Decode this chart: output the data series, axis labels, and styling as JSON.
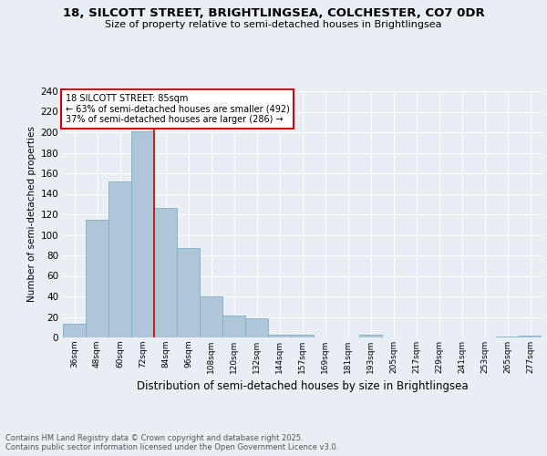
{
  "title_line1": "18, SILCOTT STREET, BRIGHTLINGSEA, COLCHESTER, CO7 0DR",
  "title_line2": "Size of property relative to semi-detached houses in Brightlingsea",
  "xlabel": "Distribution of semi-detached houses by size in Brightlingsea",
  "ylabel": "Number of semi-detached properties",
  "categories": [
    "36sqm",
    "48sqm",
    "60sqm",
    "72sqm",
    "84sqm",
    "96sqm",
    "108sqm",
    "120sqm",
    "132sqm",
    "144sqm",
    "157sqm",
    "169sqm",
    "181sqm",
    "193sqm",
    "205sqm",
    "217sqm",
    "229sqm",
    "241sqm",
    "253sqm",
    "265sqm",
    "277sqm"
  ],
  "values": [
    13,
    115,
    152,
    201,
    126,
    87,
    40,
    21,
    19,
    3,
    3,
    0,
    0,
    3,
    0,
    0,
    0,
    0,
    0,
    1,
    2
  ],
  "bar_color": "#aec6d8",
  "bar_edge_color": "#7aafc8",
  "annotation_text": "18 SILCOTT STREET: 85sqm\n← 63% of semi-detached houses are smaller (492)\n37% of semi-detached houses are larger (286) →",
  "annotation_box_color": "#ffffff",
  "annotation_box_edge_color": "#cc0000",
  "vline_color": "#cc0000",
  "vline_x_index": 4,
  "ylim": [
    0,
    240
  ],
  "yticks": [
    0,
    20,
    40,
    60,
    80,
    100,
    120,
    140,
    160,
    180,
    200,
    220,
    240
  ],
  "footer_text": "Contains HM Land Registry data © Crown copyright and database right 2025.\nContains public sector information licensed under the Open Government Licence v3.0.",
  "background_color": "#e8eef4",
  "plot_background": "#e8eef4",
  "grid_color": "#ffffff"
}
